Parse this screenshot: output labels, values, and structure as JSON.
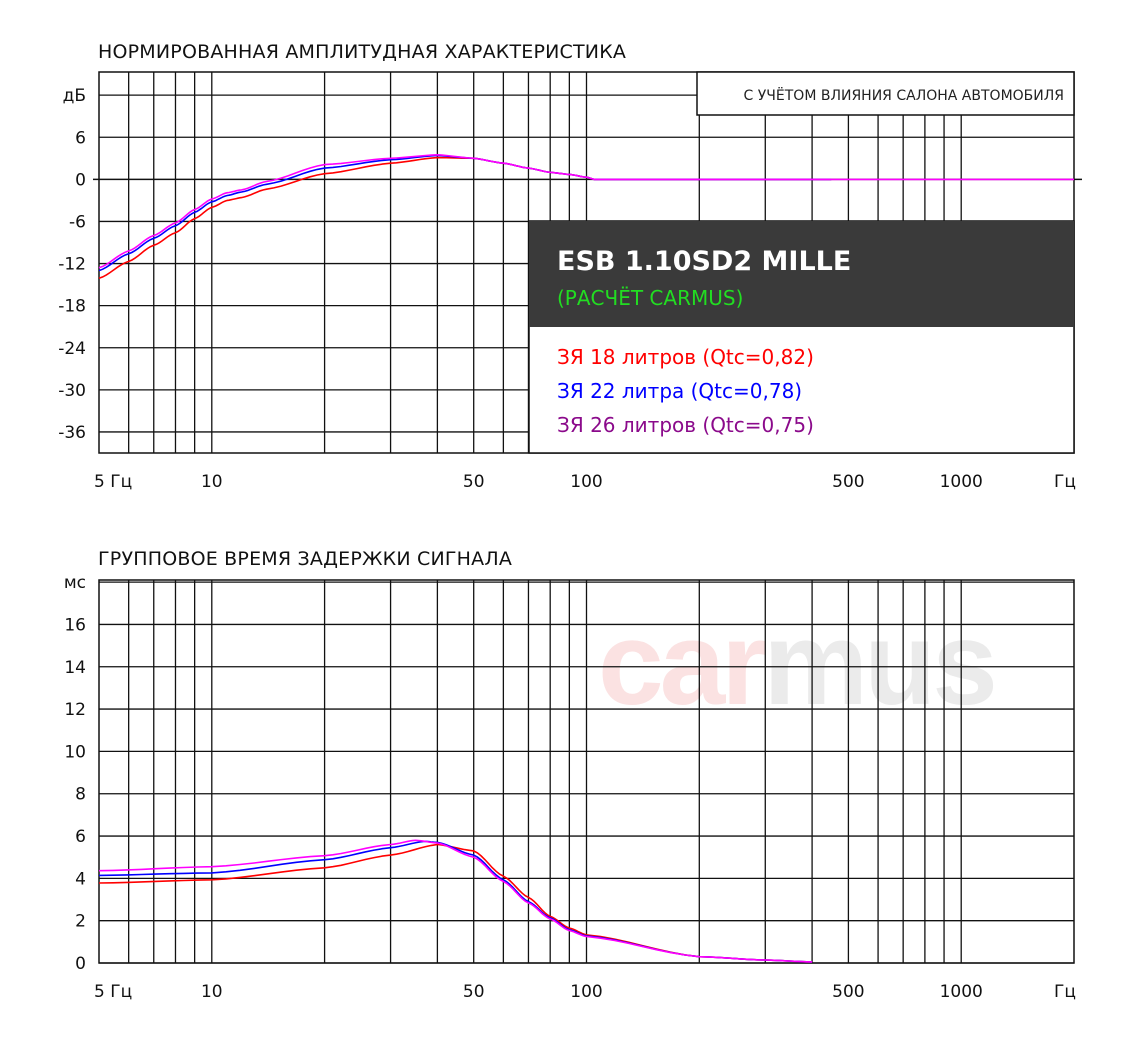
{
  "chart_data": [
    {
      "type": "line",
      "title": "НОРМИРОВАННАЯ АМПЛИТУДНАЯ ХАРАКТЕРИСТИКА",
      "note": "С УЧЁТОМ ВЛИЯНИЯ САЛОНА АВТОМОБИЛЯ",
      "ylabel": "дБ",
      "xlabel": "Гц",
      "xscale": "log",
      "xlim": [
        5,
        2000
      ],
      "ylim": [
        -39,
        15.3
      ],
      "grid": true,
      "xticks": [
        {
          "value": 5,
          "label": "5 Гц"
        },
        {
          "value": 10,
          "label": "10"
        },
        {
          "value": 50,
          "label": "50"
        },
        {
          "value": 100,
          "label": "100"
        },
        {
          "value": 500,
          "label": "500"
        },
        {
          "value": 1000,
          "label": "1000"
        },
        {
          "value": 2000,
          "label": "Гц"
        }
      ],
      "yticks": [
        {
          "value": 12,
          "label": "дБ"
        },
        {
          "value": 6,
          "label": "6"
        },
        {
          "value": 0,
          "label": "0"
        },
        {
          "value": -6,
          "label": "-6"
        },
        {
          "value": -12,
          "label": "-12"
        },
        {
          "value": -18,
          "label": "-18"
        },
        {
          "value": -24,
          "label": "-24"
        },
        {
          "value": -30,
          "label": "-30"
        },
        {
          "value": -36,
          "label": "-36"
        }
      ],
      "legend": {
        "placement": "right",
        "model": "ESB 1.10SD2 MILLE",
        "subtitle": "(РАСЧЁТ CARMUS)",
        "subtitle_color": "#22dd22",
        "header_bg": "#3a3a3a",
        "entries": [
          {
            "label": "ЗЯ 18 литров (Qtc=0,82)",
            "color": "#ff0000"
          },
          {
            "label": "ЗЯ 22 литра (Qtc=0,78)",
            "color": "#0000ff"
          },
          {
            "label": "ЗЯ 26 литров (Qtc=0,75)",
            "color": "#8b0a8b"
          }
        ]
      },
      "series": [
        {
          "color": "#ff0000",
          "x": [
            5,
            6,
            7,
            8,
            9,
            10,
            11,
            12,
            14,
            20,
            30,
            40,
            50,
            60,
            70,
            80,
            90,
            100,
            105,
            450
          ],
          "y": [
            -14.1,
            -11.7,
            -9.4,
            -7.6,
            -5.6,
            -4.0,
            -3.0,
            -2.6,
            -1.4,
            0.8,
            2.3,
            3.1,
            3.0,
            2.3,
            1.6,
            1.0,
            0.7,
            0.3,
            0,
            0
          ]
        },
        {
          "color": "#0000ff",
          "x": [
            5,
            6,
            7,
            8,
            9,
            10,
            11,
            12,
            14,
            20,
            30,
            40,
            50,
            60,
            70,
            80,
            90,
            100,
            105,
            450
          ],
          "y": [
            -13.0,
            -10.6,
            -8.4,
            -6.6,
            -4.7,
            -3.2,
            -2.3,
            -1.8,
            -0.7,
            1.6,
            2.8,
            3.4,
            3.0,
            2.3,
            1.6,
            1.0,
            0.7,
            0.3,
            0,
            0
          ]
        },
        {
          "color": "#ff00ff",
          "x": [
            5,
            6,
            7,
            8,
            9,
            10,
            11,
            12,
            14,
            20,
            30,
            40,
            50,
            60,
            70,
            80,
            90,
            100,
            105,
            2000
          ],
          "y": [
            -12.6,
            -10.2,
            -8.0,
            -6.2,
            -4.3,
            -2.8,
            -1.9,
            -1.5,
            -0.3,
            2.1,
            3.0,
            3.5,
            3.0,
            2.3,
            1.6,
            1.0,
            0.7,
            0.3,
            0,
            0
          ]
        }
      ]
    },
    {
      "type": "line",
      "title": "ГРУППОВОЕ ВРЕМЯ ЗАДЕРЖКИ СИГНАЛА",
      "ylabel": "мс",
      "xlabel": "Гц",
      "xscale": "log",
      "xlim": [
        5,
        2000
      ],
      "ylim": [
        0,
        18.1
      ],
      "grid": true,
      "watermark": {
        "text_a": "car",
        "text_b": "mus",
        "color_a": "#fbe2e2",
        "color_b": "#ebebeb"
      },
      "xticks": [
        {
          "value": 5,
          "label": "5 Гц"
        },
        {
          "value": 10,
          "label": "10"
        },
        {
          "value": 50,
          "label": "50"
        },
        {
          "value": 100,
          "label": "100"
        },
        {
          "value": 500,
          "label": "500"
        },
        {
          "value": 1000,
          "label": "1000"
        },
        {
          "value": 2000,
          "label": "Гц"
        }
      ],
      "yticks": [
        {
          "value": 18,
          "label": "мс"
        },
        {
          "value": 16,
          "label": "16"
        },
        {
          "value": 14,
          "label": "14"
        },
        {
          "value": 12,
          "label": "12"
        },
        {
          "value": 10,
          "label": "10"
        },
        {
          "value": 8,
          "label": "8"
        },
        {
          "value": 6,
          "label": "6"
        },
        {
          "value": 4,
          "label": "4"
        },
        {
          "value": 2,
          "label": "2"
        },
        {
          "value": 0,
          "label": "0"
        }
      ],
      "series": [
        {
          "color": "#ff0000",
          "x": [
            5,
            10,
            20,
            30,
            40,
            50,
            60,
            70,
            80,
            90,
            100,
            200,
            300,
            400
          ],
          "y": [
            3.78,
            3.93,
            4.5,
            5.1,
            5.6,
            5.3,
            4.1,
            3.1,
            2.2,
            1.65,
            1.33,
            0.3,
            0.14,
            0.05
          ]
        },
        {
          "color": "#0000ff",
          "x": [
            5,
            10,
            20,
            30,
            37,
            40,
            50,
            60,
            70,
            80,
            90,
            100,
            200,
            300,
            400
          ],
          "y": [
            4.14,
            4.26,
            4.88,
            5.45,
            5.75,
            5.7,
            5.1,
            3.93,
            2.9,
            2.13,
            1.57,
            1.28,
            0.3,
            0.14,
            0.05
          ]
        },
        {
          "color": "#ff00ff",
          "x": [
            5,
            10,
            20,
            30,
            35,
            40,
            50,
            60,
            70,
            80,
            90,
            100,
            200,
            300,
            400
          ],
          "y": [
            4.36,
            4.55,
            5.07,
            5.6,
            5.8,
            5.67,
            5.0,
            3.85,
            2.84,
            2.08,
            1.53,
            1.25,
            0.3,
            0.14,
            0.05
          ]
        }
      ]
    }
  ]
}
